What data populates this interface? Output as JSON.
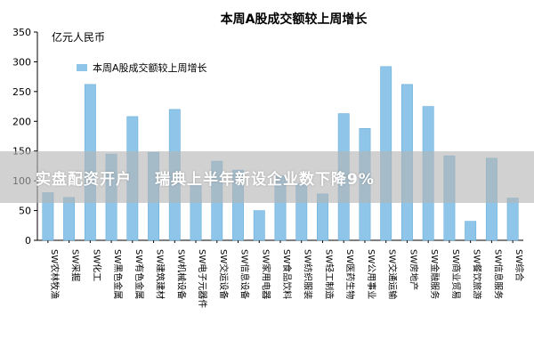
{
  "chart_data": {
    "type": "bar",
    "title": "本周A股成交额较上周增长",
    "ylabel": "亿元人民币",
    "legend": {
      "label": "本周A股成交额较上周增长",
      "position": "top-left",
      "color": "#8ec5e8"
    },
    "ylim": [
      0,
      350
    ],
    "yticks": [
      0,
      50,
      100,
      150,
      200,
      250,
      300,
      350
    ],
    "grid": false,
    "categories": [
      "SW农林牧渔",
      "SW采掘",
      "SW化工",
      "SW黑色金属",
      "SW有色金属",
      "SW建筑建材",
      "SW机械设备",
      "SW电子元器件",
      "SW交运设备",
      "SW信息设备",
      "SW家用电器",
      "SW食品饮料",
      "SW纺织服装",
      "SW轻工制造",
      "SW医药生物",
      "SW公用事业",
      "SW交通运输",
      "SW房地产",
      "SW金融服务",
      "SW商业贸易",
      "SW餐饮旅游",
      "SW信息服务",
      "SW综合"
    ],
    "values": [
      80,
      72,
      262,
      145,
      208,
      148,
      220,
      95,
      133,
      118,
      50,
      108,
      95,
      78,
      213,
      188,
      292,
      262,
      225,
      142,
      32,
      138,
      71
    ]
  },
  "overlay": {
    "left_text": "实盘配资开户",
    "right_text": "瑞典上半年新设企业数下降9%"
  },
  "colors": {
    "bar": "#8ec5e8",
    "bar_stroke": "#5fa8d8",
    "axis": "#000000"
  }
}
